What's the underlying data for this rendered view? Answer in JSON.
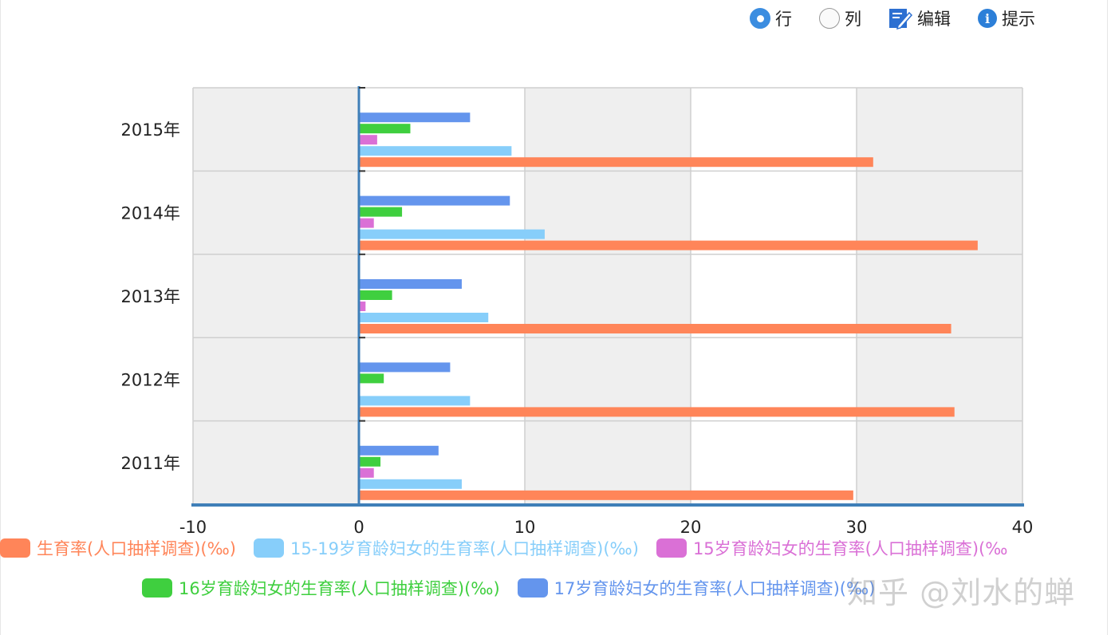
{
  "toolbar": {
    "row_label": "行",
    "col_label": "列",
    "edit_label": "编辑",
    "hint_label": "提示",
    "selected": "row"
  },
  "watermark": "知乎 @刘水的蝉",
  "chart_data": {
    "type": "bar",
    "orientation": "horizontal",
    "categories": [
      "2011年",
      "2012年",
      "2013年",
      "2014年",
      "2015年"
    ],
    "xlim": [
      -10,
      40
    ],
    "xticks": [
      -10,
      0,
      10,
      20,
      30,
      40
    ],
    "grid": true,
    "legend_position": "bottom",
    "series": [
      {
        "name": "生育率(人口抽样调查)(‰)",
        "color": "#ff8559",
        "values": [
          29.8,
          35.9,
          35.7,
          37.3,
          31
        ]
      },
      {
        "name": "15-19岁育龄妇女的生育率(人口抽样调查)(‰)",
        "color": "#87cefa",
        "values": [
          6.2,
          6.7,
          7.8,
          11.2,
          9.2
        ]
      },
      {
        "name": "15岁育龄妇女的生育率(人口抽样调查)(‰",
        "color": "#da70d6",
        "values": [
          0.9,
          0,
          0.4,
          0.9,
          1.1
        ]
      },
      {
        "name": "16岁育龄妇女的生育率(人口抽样调查)(‰)",
        "color": "#3fcf3f",
        "values": [
          1.3,
          1.5,
          2.0,
          2.6,
          3.1
        ]
      },
      {
        "name": "17岁育龄妇女的生育率(人口抽样调查)(‰)",
        "color": "#6495ed",
        "values": [
          4.8,
          5.5,
          6.2,
          9.1,
          6.7
        ]
      }
    ]
  }
}
